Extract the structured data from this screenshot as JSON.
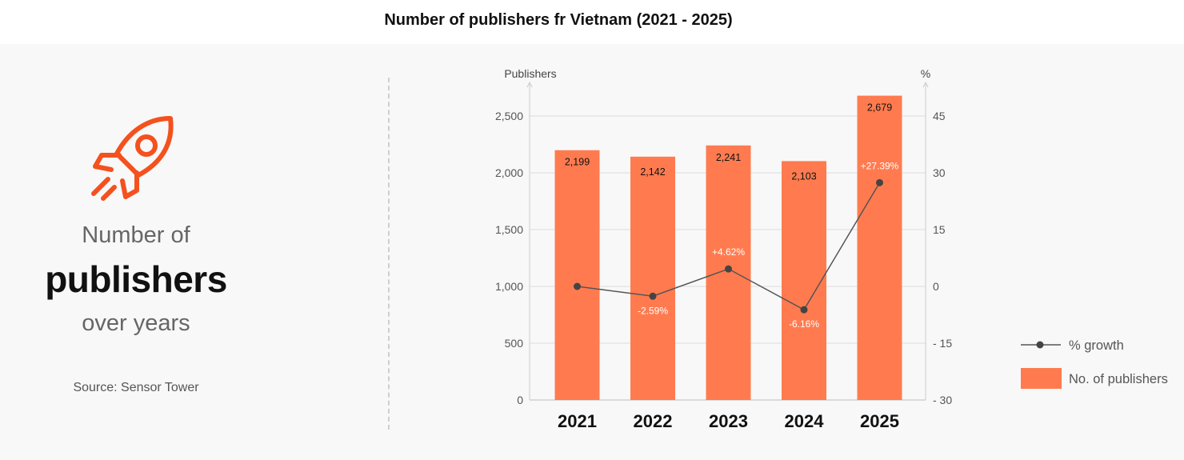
{
  "title": "Number of publishers fr Vietnam (2021 - 2025)",
  "left_panel": {
    "line1": "Number of",
    "line2": "publishers",
    "line3": "over years",
    "source": "Source: Sensor Tower",
    "icon": "rocket-icon"
  },
  "colors": {
    "bar": "#ff7b4f",
    "line": "#555555",
    "accent": "#f4511e",
    "grid": "#dddddd"
  },
  "legend": {
    "line_label": "% growth",
    "bar_label": "No. of publishers"
  },
  "chart_data": {
    "type": "bar",
    "categories": [
      "2021",
      "2022",
      "2023",
      "2024",
      "2025"
    ],
    "series": [
      {
        "name": "No. of publishers",
        "type": "bar",
        "axis": "left",
        "values": [
          2199,
          2142,
          2241,
          2103,
          2679
        ],
        "labels": [
          "2,199",
          "2,142",
          "2,241",
          "2,103",
          "2,679"
        ]
      },
      {
        "name": "% growth",
        "type": "line",
        "axis": "right",
        "values": [
          0,
          -2.59,
          4.62,
          -6.16,
          27.39
        ],
        "labels": [
          "",
          "-2.59%",
          "+4.62%",
          "-6.16%",
          "+27.39%"
        ]
      }
    ],
    "ylabel": "Publishers",
    "y2label": "%",
    "ylim": [
      0,
      2500
    ],
    "y2lim": [
      -30,
      45
    ],
    "yticks": [
      "0",
      "500",
      "1,000",
      "1,500",
      "2,000",
      "2,500"
    ],
    "y2ticks": [
      "- 30",
      "- 15",
      "0",
      "15",
      "30",
      "45"
    ],
    "grid": true,
    "legend_position": "right"
  }
}
